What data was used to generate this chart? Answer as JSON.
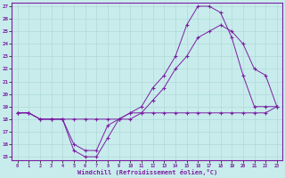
{
  "xlabel": "Windchill (Refroidissement éolien,°C)",
  "bg_color": "#c8ecec",
  "line_color": "#7b1fa2",
  "grid_color": "#b0d8d8",
  "xlim": [
    -0.5,
    23.5
  ],
  "ylim": [
    14.7,
    27.3
  ],
  "xticks": [
    0,
    1,
    2,
    3,
    4,
    5,
    6,
    7,
    8,
    9,
    10,
    11,
    12,
    13,
    14,
    15,
    16,
    17,
    18,
    19,
    20,
    21,
    22,
    23
  ],
  "yticks": [
    15,
    16,
    17,
    18,
    19,
    20,
    21,
    22,
    23,
    24,
    25,
    26,
    27
  ],
  "line1_x": [
    0,
    1,
    2,
    3,
    4,
    5,
    6,
    7,
    8,
    9,
    10,
    11,
    12,
    13,
    14,
    15,
    16,
    17,
    18,
    19,
    20,
    21,
    22,
    23
  ],
  "line1_y": [
    18.5,
    18.5,
    18.0,
    18.0,
    18.0,
    15.5,
    15.0,
    15.0,
    16.5,
    18.0,
    18.5,
    18.5,
    18.5,
    18.5,
    18.5,
    18.5,
    18.5,
    18.5,
    18.5,
    18.5,
    18.5,
    18.5,
    18.5,
    19.0
  ],
  "line2_x": [
    0,
    1,
    2,
    3,
    4,
    5,
    6,
    7,
    8,
    9,
    10,
    11,
    12,
    13,
    14,
    15,
    16,
    17,
    18,
    19,
    20,
    21,
    22,
    23
  ],
  "line2_y": [
    18.5,
    18.5,
    18.0,
    18.0,
    18.0,
    16.0,
    15.5,
    15.5,
    17.5,
    18.0,
    18.5,
    19.0,
    20.5,
    21.5,
    23.0,
    25.5,
    27.0,
    27.0,
    26.5,
    24.5,
    21.5,
    19.0,
    19.0,
    19.0
  ],
  "line3_x": [
    0,
    1,
    2,
    3,
    4,
    5,
    6,
    7,
    8,
    9,
    10,
    11,
    12,
    13,
    14,
    15,
    16,
    17,
    18,
    19,
    20,
    21,
    22,
    23
  ],
  "line3_y": [
    18.5,
    18.5,
    18.0,
    18.0,
    18.0,
    18.0,
    18.0,
    18.0,
    18.0,
    18.0,
    18.0,
    18.5,
    19.5,
    20.5,
    22.0,
    23.0,
    24.5,
    25.0,
    25.5,
    25.0,
    24.0,
    22.0,
    21.5,
    19.0
  ]
}
